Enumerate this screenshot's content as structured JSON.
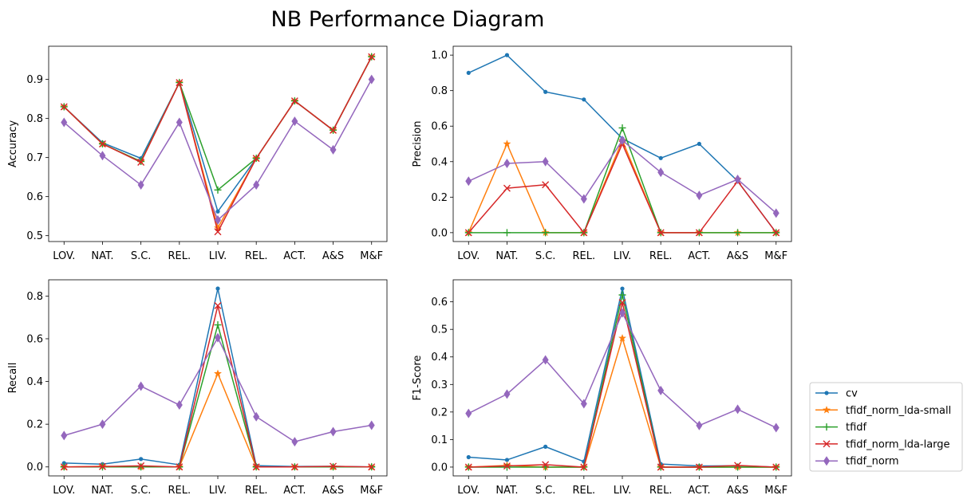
{
  "figure": {
    "title": "NB Performance Diagram"
  },
  "legend": {
    "placement": "lower-right-outside"
  },
  "series_styles": [
    {
      "name": "cv",
      "color": "#1f77b4",
      "marker": "point"
    },
    {
      "name": "tfidf_norm_lda-small",
      "color": "#ff7f0e",
      "marker": "star"
    },
    {
      "name": "tfidf",
      "color": "#2ca02c",
      "marker": "plus"
    },
    {
      "name": "tfidf_norm_lda-large",
      "color": "#d62728",
      "marker": "x"
    },
    {
      "name": "tfidf_norm",
      "color": "#9467bd",
      "marker": "thin-diamond"
    }
  ],
  "chart_data": [
    {
      "type": "line",
      "ylabel": "Accuracy",
      "categories": [
        "LOV.",
        "NAT.",
        "S.C.",
        "REL.",
        "LIV.",
        "REL.",
        "ACT.",
        "A&S",
        "M&F"
      ],
      "ylim": [
        0.485,
        0.985
      ],
      "yticks": [
        0.5,
        0.6,
        0.7,
        0.8,
        0.9
      ],
      "ytick_labels": [
        "0.5",
        "0.6",
        "0.7",
        "0.8",
        "0.9"
      ],
      "series": [
        {
          "name": "cv",
          "values": [
            0.83,
            0.738,
            0.698,
            0.892,
            0.562,
            0.698,
            0.845,
            0.77,
            0.958
          ]
        },
        {
          "name": "tfidf_norm_lda-small",
          "values": [
            0.83,
            0.735,
            0.69,
            0.892,
            0.52,
            0.698,
            0.845,
            0.77,
            0.958
          ]
        },
        {
          "name": "tfidf",
          "values": [
            0.83,
            0.735,
            0.69,
            0.892,
            0.617,
            0.698,
            0.845,
            0.77,
            0.958
          ]
        },
        {
          "name": "tfidf_norm_lda-large",
          "values": [
            0.83,
            0.735,
            0.688,
            0.892,
            0.51,
            0.698,
            0.845,
            0.77,
            0.958
          ]
        },
        {
          "name": "tfidf_norm",
          "values": [
            0.79,
            0.705,
            0.63,
            0.79,
            0.54,
            0.63,
            0.793,
            0.72,
            0.9
          ]
        }
      ]
    },
    {
      "type": "line",
      "ylabel": "Precision",
      "categories": [
        "LOV.",
        "NAT.",
        "S.C.",
        "REL.",
        "LIV.",
        "REL.",
        "ACT.",
        "A&S",
        "M&F"
      ],
      "ylim": [
        -0.05,
        1.05
      ],
      "yticks": [
        0.0,
        0.2,
        0.4,
        0.6,
        0.8,
        1.0
      ],
      "ytick_labels": [
        "0.0",
        "0.2",
        "0.4",
        "0.6",
        "0.8",
        "1.0"
      ],
      "series": [
        {
          "name": "cv",
          "values": [
            0.9,
            1.0,
            0.793,
            0.75,
            0.53,
            0.42,
            0.5,
            0.29,
            0.0
          ]
        },
        {
          "name": "tfidf_norm_lda-small",
          "values": [
            0.0,
            0.5,
            0.0,
            0.0,
            0.52,
            0.0,
            0.0,
            0.0,
            0.0
          ]
        },
        {
          "name": "tfidf",
          "values": [
            0.0,
            0.0,
            0.0,
            0.0,
            0.59,
            0.0,
            0.0,
            0.0,
            0.0
          ]
        },
        {
          "name": "tfidf_norm_lda-large",
          "values": [
            0.0,
            0.25,
            0.27,
            0.0,
            0.5,
            0.0,
            0.0,
            0.29,
            0.0
          ]
        },
        {
          "name": "tfidf_norm",
          "values": [
            0.29,
            0.39,
            0.4,
            0.19,
            0.52,
            0.34,
            0.21,
            0.3,
            0.11
          ]
        }
      ]
    },
    {
      "type": "line",
      "ylabel": "Recall",
      "categories": [
        "LOV.",
        "NAT.",
        "S.C.",
        "REL.",
        "LIV.",
        "REL.",
        "ACT.",
        "A&S",
        "M&F"
      ],
      "ylim": [
        -0.042,
        0.876
      ],
      "yticks": [
        0.0,
        0.2,
        0.4,
        0.6,
        0.8
      ],
      "ytick_labels": [
        "0.0",
        "0.2",
        "0.4",
        "0.6",
        "0.8"
      ],
      "series": [
        {
          "name": "cv",
          "values": [
            0.018,
            0.013,
            0.037,
            0.01,
            0.835,
            0.006,
            0.002,
            0.003,
            0.0
          ]
        },
        {
          "name": "tfidf_norm_lda-small",
          "values": [
            0.0,
            0.003,
            0.0,
            0.0,
            0.437,
            0.0,
            0.0,
            0.0,
            0.0
          ]
        },
        {
          "name": "tfidf",
          "values": [
            0.0,
            0.0,
            0.0,
            0.0,
            0.665,
            0.0,
            0.0,
            0.0,
            0.0
          ]
        },
        {
          "name": "tfidf_norm_lda-large",
          "values": [
            0.0,
            0.002,
            0.005,
            0.0,
            0.755,
            0.0,
            0.0,
            0.003,
            0.0
          ]
        },
        {
          "name": "tfidf_norm",
          "values": [
            0.147,
            0.2,
            0.378,
            0.29,
            0.605,
            0.235,
            0.118,
            0.165,
            0.195
          ]
        }
      ]
    },
    {
      "type": "line",
      "ylabel": "F1-Score",
      "categories": [
        "LOV.",
        "NAT.",
        "S.C.",
        "REL.",
        "LIV.",
        "REL.",
        "ACT.",
        "A&S",
        "M&F"
      ],
      "ylim": [
        -0.032,
        0.68
      ],
      "yticks": [
        0.0,
        0.1,
        0.2,
        0.3,
        0.4,
        0.5,
        0.6
      ],
      "ytick_labels": [
        "0.0",
        "0.1",
        "0.2",
        "0.3",
        "0.4",
        "0.5",
        "0.6"
      ],
      "series": [
        {
          "name": "cv",
          "values": [
            0.036,
            0.026,
            0.074,
            0.02,
            0.648,
            0.011,
            0.004,
            0.005,
            0.0
          ]
        },
        {
          "name": "tfidf_norm_lda-small",
          "values": [
            0.0,
            0.006,
            0.0,
            0.0,
            0.468,
            0.0,
            0.0,
            0.0,
            0.0
          ]
        },
        {
          "name": "tfidf",
          "values": [
            0.0,
            0.0,
            0.0,
            0.0,
            0.625,
            0.0,
            0.0,
            0.0,
            0.0
          ]
        },
        {
          "name": "tfidf_norm_lda-large",
          "values": [
            0.0,
            0.004,
            0.009,
            0.0,
            0.597,
            0.0,
            0.0,
            0.006,
            0.0
          ]
        },
        {
          "name": "tfidf_norm",
          "values": [
            0.195,
            0.265,
            0.389,
            0.23,
            0.56,
            0.278,
            0.151,
            0.21,
            0.143
          ]
        }
      ]
    }
  ]
}
